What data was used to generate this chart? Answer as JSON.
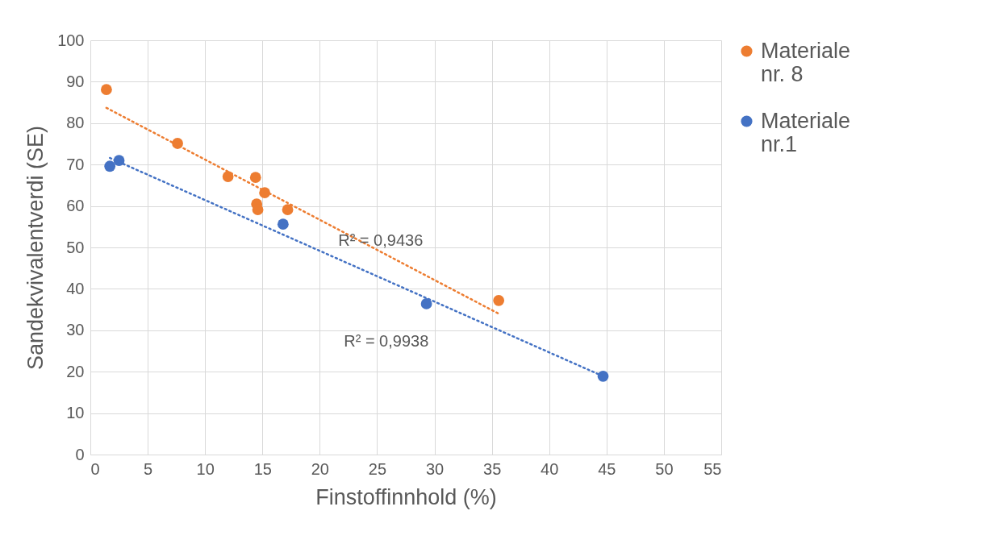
{
  "chart_data": {
    "type": "scatter",
    "xlabel": "Finstoffinnhold (%)",
    "ylabel": "Sandekvivalentverdi (SE)",
    "xlim": [
      0,
      55
    ],
    "xticks": [
      0,
      5,
      10,
      15,
      20,
      25,
      30,
      35,
      40,
      45,
      50,
      55
    ],
    "ylim": [
      0,
      100
    ],
    "yticks": [
      0,
      10,
      20,
      30,
      40,
      50,
      60,
      70,
      80,
      90,
      100
    ],
    "grid": true,
    "legend": "right",
    "series": [
      {
        "name": "Materiale nr. 8",
        "marker": "circle",
        "color": "#ed7d31",
        "x": [
          1.4,
          7.6,
          12.0,
          14.4,
          14.5,
          14.6,
          15.2,
          17.2,
          35.6
        ],
        "values": [
          88.1,
          75.1,
          67.1,
          66.9,
          60.5,
          59.1,
          63.2,
          59.1,
          37.2
        ]
      },
      {
        "name": "Materiale nr.1",
        "marker": "circle",
        "color": "#4472c4",
        "x": [
          1.7,
          2.5,
          16.8,
          29.3,
          44.7
        ],
        "values": [
          69.6,
          71.0,
          55.6,
          36.4,
          18.9
        ]
      },
      {
        "type": "line",
        "line_style": "dotted",
        "color": "#ed7d31",
        "x": [
          1.4,
          35.6
        ],
        "values": [
          83.7,
          34.0
        ]
      },
      {
        "type": "line",
        "line_style": "dotted",
        "color": "#4472c4",
        "x": [
          1.7,
          44.7
        ],
        "values": [
          71.6,
          18.9
        ]
      }
    ],
    "annotations": [
      "R² = 0,9436",
      "R² = 0,9938"
    ]
  }
}
